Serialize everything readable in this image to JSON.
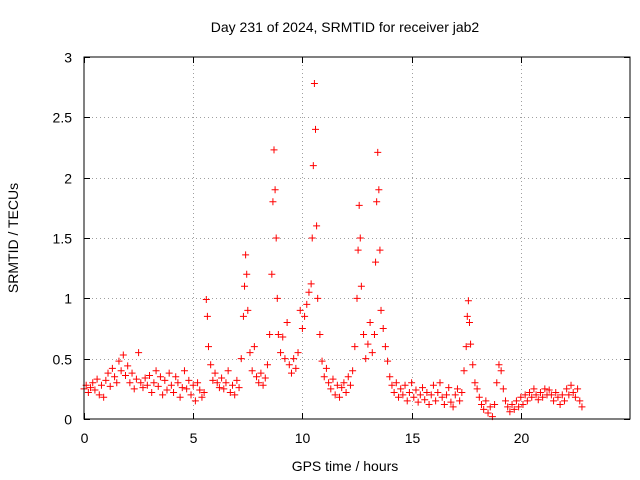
{
  "chart_data": {
    "type": "scatter",
    "title": "Day 231 of 2024, SRMTID for receiver jab2",
    "xlabel": "GPS time / hours",
    "ylabel": "SRMTID / TECUs",
    "xlim": [
      0,
      25
    ],
    "ylim": [
      0,
      3
    ],
    "xticks": [
      0,
      5,
      10,
      15,
      20
    ],
    "xtick_labels": [
      "0",
      "5",
      "10",
      "15",
      "20"
    ],
    "yticks": [
      0,
      0.5,
      1,
      1.5,
      2,
      2.5,
      3
    ],
    "ytick_labels": [
      "0",
      "0.5",
      "1",
      "1.5",
      "2",
      "2.5",
      "3"
    ],
    "grid": true,
    "marker": "plus",
    "color": "#ff0000",
    "series": [
      {
        "name": "SRMTID",
        "points": [
          [
            0.0,
            0.25
          ],
          [
            0.1,
            0.28
          ],
          [
            0.2,
            0.22
          ],
          [
            0.3,
            0.26
          ],
          [
            0.4,
            0.3
          ],
          [
            0.5,
            0.24
          ],
          [
            0.6,
            0.33
          ],
          [
            0.7,
            0.2
          ],
          [
            0.8,
            0.28
          ],
          [
            0.9,
            0.18
          ],
          [
            1.0,
            0.32
          ],
          [
            1.1,
            0.38
          ],
          [
            1.2,
            0.27
          ],
          [
            1.3,
            0.42
          ],
          [
            1.4,
            0.35
          ],
          [
            1.5,
            0.3
          ],
          [
            1.6,
            0.48
          ],
          [
            1.7,
            0.4
          ],
          [
            1.8,
            0.53
          ],
          [
            1.9,
            0.36
          ],
          [
            2.0,
            0.44
          ],
          [
            2.1,
            0.3
          ],
          [
            2.2,
            0.38
          ],
          [
            2.3,
            0.25
          ],
          [
            2.4,
            0.33
          ],
          [
            2.5,
            0.55
          ],
          [
            2.6,
            0.3
          ],
          [
            2.7,
            0.26
          ],
          [
            2.8,
            0.34
          ],
          [
            2.9,
            0.28
          ],
          [
            3.0,
            0.36
          ],
          [
            3.1,
            0.22
          ],
          [
            3.2,
            0.3
          ],
          [
            3.3,
            0.4
          ],
          [
            3.4,
            0.27
          ],
          [
            3.5,
            0.35
          ],
          [
            3.6,
            0.2
          ],
          [
            3.7,
            0.32
          ],
          [
            3.8,
            0.24
          ],
          [
            3.9,
            0.38
          ],
          [
            4.0,
            0.28
          ],
          [
            4.1,
            0.22
          ],
          [
            4.2,
            0.35
          ],
          [
            4.3,
            0.3
          ],
          [
            4.4,
            0.18
          ],
          [
            4.5,
            0.26
          ],
          [
            4.6,
            0.4
          ],
          [
            4.7,
            0.25
          ],
          [
            4.8,
            0.32
          ],
          [
            4.9,
            0.2
          ],
          [
            5.0,
            0.28
          ],
          [
            5.1,
            0.15
          ],
          [
            5.2,
            0.3
          ],
          [
            5.3,
            0.24
          ],
          [
            5.4,
            0.18
          ],
          [
            5.5,
            0.22
          ],
          [
            5.6,
            0.99
          ],
          [
            5.65,
            0.85
          ],
          [
            5.7,
            0.6
          ],
          [
            5.8,
            0.45
          ],
          [
            5.9,
            0.32
          ],
          [
            6.0,
            0.38
          ],
          [
            6.1,
            0.3
          ],
          [
            6.2,
            0.26
          ],
          [
            6.3,
            0.34
          ],
          [
            6.4,
            0.25
          ],
          [
            6.5,
            0.3
          ],
          [
            6.6,
            0.4
          ],
          [
            6.7,
            0.22
          ],
          [
            6.8,
            0.28
          ],
          [
            6.9,
            0.2
          ],
          [
            7.0,
            0.32
          ],
          [
            7.1,
            0.26
          ],
          [
            7.2,
            0.5
          ],
          [
            7.3,
            0.85
          ],
          [
            7.35,
            1.1
          ],
          [
            7.4,
            1.36
          ],
          [
            7.45,
            1.2
          ],
          [
            7.5,
            0.9
          ],
          [
            7.6,
            0.55
          ],
          [
            7.7,
            0.4
          ],
          [
            7.8,
            0.6
          ],
          [
            7.9,
            0.35
          ],
          [
            8.0,
            0.3
          ],
          [
            8.1,
            0.38
          ],
          [
            8.2,
            0.28
          ],
          [
            8.3,
            0.34
          ],
          [
            8.4,
            0.45
          ],
          [
            8.5,
            0.7
          ],
          [
            8.6,
            1.2
          ],
          [
            8.65,
            1.8
          ],
          [
            8.7,
            2.23
          ],
          [
            8.75,
            1.9
          ],
          [
            8.8,
            1.5
          ],
          [
            8.85,
            1.0
          ],
          [
            8.9,
            0.7
          ],
          [
            9.0,
            0.55
          ],
          [
            9.1,
            0.68
          ],
          [
            9.2,
            0.5
          ],
          [
            9.3,
            0.8
          ],
          [
            9.4,
            0.45
          ],
          [
            9.5,
            0.38
          ],
          [
            9.6,
            0.5
          ],
          [
            9.7,
            0.42
          ],
          [
            9.8,
            0.55
          ],
          [
            9.9,
            0.9
          ],
          [
            10.0,
            0.75
          ],
          [
            10.1,
            0.85
          ],
          [
            10.2,
            0.95
          ],
          [
            10.3,
            1.05
          ],
          [
            10.4,
            1.12
          ],
          [
            10.45,
            1.5
          ],
          [
            10.5,
            2.1
          ],
          [
            10.55,
            2.78
          ],
          [
            10.6,
            2.4
          ],
          [
            10.65,
            1.6
          ],
          [
            10.7,
            1.0
          ],
          [
            10.8,
            0.7
          ],
          [
            10.9,
            0.48
          ],
          [
            11.0,
            0.35
          ],
          [
            11.1,
            0.42
          ],
          [
            11.2,
            0.3
          ],
          [
            11.3,
            0.25
          ],
          [
            11.4,
            0.33
          ],
          [
            11.5,
            0.2
          ],
          [
            11.6,
            0.28
          ],
          [
            11.7,
            0.18
          ],
          [
            11.8,
            0.26
          ],
          [
            11.9,
            0.3
          ],
          [
            12.0,
            0.22
          ],
          [
            12.1,
            0.35
          ],
          [
            12.2,
            0.28
          ],
          [
            12.3,
            0.4
          ],
          [
            12.4,
            0.6
          ],
          [
            12.5,
            1.0
          ],
          [
            12.55,
            1.4
          ],
          [
            12.6,
            1.77
          ],
          [
            12.65,
            1.5
          ],
          [
            12.7,
            1.1
          ],
          [
            12.8,
            0.7
          ],
          [
            12.9,
            0.5
          ],
          [
            13.0,
            0.62
          ],
          [
            13.1,
            0.8
          ],
          [
            13.2,
            0.55
          ],
          [
            13.3,
            0.7
          ],
          [
            13.35,
            1.3
          ],
          [
            13.4,
            1.8
          ],
          [
            13.45,
            2.21
          ],
          [
            13.5,
            1.9
          ],
          [
            13.55,
            1.4
          ],
          [
            13.6,
            0.9
          ],
          [
            13.7,
            0.75
          ],
          [
            13.8,
            0.6
          ],
          [
            13.9,
            0.48
          ],
          [
            14.0,
            0.35
          ],
          [
            14.1,
            0.28
          ],
          [
            14.2,
            0.22
          ],
          [
            14.3,
            0.3
          ],
          [
            14.4,
            0.18
          ],
          [
            14.5,
            0.25
          ],
          [
            14.6,
            0.2
          ],
          [
            14.7,
            0.28
          ],
          [
            14.8,
            0.15
          ],
          [
            14.9,
            0.22
          ],
          [
            15.0,
            0.3
          ],
          [
            15.1,
            0.18
          ],
          [
            15.2,
            0.24
          ],
          [
            15.3,
            0.14
          ],
          [
            15.4,
            0.2
          ],
          [
            15.5,
            0.26
          ],
          [
            15.6,
            0.16
          ],
          [
            15.7,
            0.22
          ],
          [
            15.8,
            0.12
          ],
          [
            15.9,
            0.2
          ],
          [
            16.0,
            0.28
          ],
          [
            16.1,
            0.15
          ],
          [
            16.2,
            0.22
          ],
          [
            16.3,
            0.3
          ],
          [
            16.4,
            0.18
          ],
          [
            16.5,
            0.12
          ],
          [
            16.6,
            0.2
          ],
          [
            16.7,
            0.26
          ],
          [
            16.8,
            0.14
          ],
          [
            16.9,
            0.1
          ],
          [
            17.0,
            0.2
          ],
          [
            17.1,
            0.25
          ],
          [
            17.2,
            0.15
          ],
          [
            17.3,
            0.22
          ],
          [
            17.4,
            0.4
          ],
          [
            17.5,
            0.6
          ],
          [
            17.55,
            0.85
          ],
          [
            17.6,
            0.98
          ],
          [
            17.65,
            0.8
          ],
          [
            17.7,
            0.62
          ],
          [
            17.8,
            0.45
          ],
          [
            17.9,
            0.3
          ],
          [
            18.0,
            0.25
          ],
          [
            18.1,
            0.18
          ],
          [
            18.2,
            0.12
          ],
          [
            18.3,
            0.08
          ],
          [
            18.4,
            0.15
          ],
          [
            18.5,
            0.05
          ],
          [
            18.6,
            0.1
          ],
          [
            18.7,
            0.02
          ],
          [
            18.8,
            0.12
          ],
          [
            18.9,
            0.3
          ],
          [
            19.0,
            0.45
          ],
          [
            19.1,
            0.4
          ],
          [
            19.2,
            0.25
          ],
          [
            19.3,
            0.15
          ],
          [
            19.4,
            0.1
          ],
          [
            19.5,
            0.06
          ],
          [
            19.6,
            0.12
          ],
          [
            19.7,
            0.08
          ],
          [
            19.8,
            0.15
          ],
          [
            19.9,
            0.1
          ],
          [
            20.0,
            0.18
          ],
          [
            20.1,
            0.12
          ],
          [
            20.2,
            0.2
          ],
          [
            20.3,
            0.15
          ],
          [
            20.4,
            0.22
          ],
          [
            20.5,
            0.18
          ],
          [
            20.6,
            0.25
          ],
          [
            20.7,
            0.2
          ],
          [
            20.8,
            0.16
          ],
          [
            20.9,
            0.22
          ],
          [
            21.0,
            0.18
          ],
          [
            21.1,
            0.25
          ],
          [
            21.2,
            0.2
          ],
          [
            21.3,
            0.24
          ],
          [
            21.4,
            0.2
          ],
          [
            21.5,
            0.15
          ],
          [
            21.6,
            0.22
          ],
          [
            21.7,
            0.18
          ],
          [
            21.8,
            0.12
          ],
          [
            21.9,
            0.2
          ],
          [
            22.0,
            0.15
          ],
          [
            22.1,
            0.25
          ],
          [
            22.2,
            0.2
          ],
          [
            22.3,
            0.28
          ],
          [
            22.4,
            0.22
          ],
          [
            22.5,
            0.18
          ],
          [
            22.6,
            0.25
          ],
          [
            22.7,
            0.15
          ],
          [
            22.8,
            0.1
          ]
        ]
      }
    ]
  }
}
